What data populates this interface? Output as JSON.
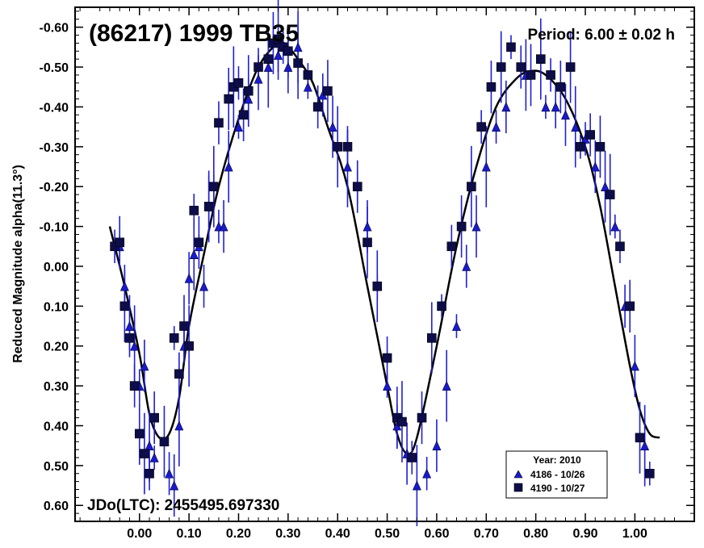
{
  "chart_data": {
    "type": "scatter",
    "title": "(86217) 1999 TB35",
    "period_label": "Period: 6.00 ± 0.02 h",
    "jdo_label": "JDo(LTC): 2455495.697330",
    "ylabel": "Reduced Magnitude alpha(11.3°)",
    "xlabel": "",
    "xlim": [
      -0.13,
      1.12
    ],
    "ylim": [
      0.64,
      -0.65
    ],
    "x_ticks": [
      0.0,
      0.1,
      0.2,
      0.3,
      0.4,
      0.5,
      0.6,
      0.7,
      0.8,
      0.9,
      1.0
    ],
    "x_tick_labels": [
      "0.00",
      "0.10",
      "0.20",
      "0.30",
      "0.40",
      "0.50",
      "0.60",
      "0.70",
      "0.80",
      "0.90",
      "1.00"
    ],
    "y_ticks": [
      -0.6,
      -0.5,
      -0.4,
      -0.3,
      -0.2,
      -0.1,
      0.0,
      0.1,
      0.2,
      0.3,
      0.4,
      0.5,
      0.6
    ],
    "y_tick_labels": [
      "-0.60",
      "-0.50",
      "-0.40",
      "-0.30",
      "-0.20",
      "-0.10",
      "0.00",
      "0.10",
      "0.20",
      "0.30",
      "0.40",
      "0.50",
      "0.60"
    ],
    "legend": {
      "title": "Year: 2010",
      "entries": [
        "4186 - 10/26",
        "4190 - 10/27"
      ],
      "placement": "bottom-right"
    },
    "colors": {
      "series_triangle": "#1a1acc",
      "series_square": "#0d0d4a",
      "errorbar": "#1f1fd6",
      "fit": "#000000"
    },
    "fit_curve": {
      "x": [
        -0.06,
        -0.03,
        0.0,
        0.02,
        0.04,
        0.06,
        0.08,
        0.1,
        0.13,
        0.16,
        0.2,
        0.24,
        0.28,
        0.3,
        0.32,
        0.35,
        0.38,
        0.42,
        0.46,
        0.5,
        0.52,
        0.54,
        0.56,
        0.6,
        0.64,
        0.68,
        0.72,
        0.76,
        0.79,
        0.82,
        0.86,
        0.9,
        0.93,
        0.96,
        0.99,
        1.01,
        1.03,
        1.05
      ],
      "y": [
        -0.1,
        0.05,
        0.22,
        0.37,
        0.43,
        0.42,
        0.33,
        0.15,
        -0.03,
        -0.2,
        -0.37,
        -0.5,
        -0.56,
        -0.55,
        -0.52,
        -0.46,
        -0.35,
        -0.2,
        0.05,
        0.3,
        0.42,
        0.47,
        0.43,
        0.2,
        -0.05,
        -0.25,
        -0.4,
        -0.47,
        -0.49,
        -0.48,
        -0.42,
        -0.3,
        -0.15,
        0.05,
        0.25,
        0.36,
        0.42,
        0.43
      ]
    },
    "series": [
      {
        "name": "4186 - 10/26",
        "marker": "triangle",
        "x": [
          -0.04,
          -0.03,
          -0.02,
          -0.01,
          0.0,
          0.01,
          0.02,
          0.03,
          0.06,
          0.07,
          0.08,
          0.09,
          0.1,
          0.11,
          0.12,
          0.13,
          0.14,
          0.15,
          0.16,
          0.17,
          0.18,
          0.2,
          0.22,
          0.24,
          0.26,
          0.28,
          0.3,
          0.32,
          0.34,
          0.37,
          0.39,
          0.42,
          0.44,
          0.46,
          0.48,
          0.5,
          0.52,
          0.54,
          0.56,
          0.58,
          0.6,
          0.62,
          0.64,
          0.66,
          0.68,
          0.7,
          0.72,
          0.74,
          0.78,
          0.82,
          0.84,
          0.86,
          0.88,
          0.9,
          0.92,
          0.94,
          0.96,
          0.98,
          1.0,
          1.02
        ],
        "y": [
          -0.05,
          0.05,
          0.15,
          0.2,
          0.3,
          0.25,
          0.45,
          0.48,
          0.52,
          0.55,
          0.4,
          0.2,
          0.03,
          -0.03,
          -0.05,
          0.05,
          -0.15,
          -0.2,
          -0.1,
          -0.1,
          -0.25,
          -0.35,
          -0.42,
          -0.47,
          -0.5,
          -0.53,
          -0.5,
          -0.55,
          -0.45,
          -0.43,
          -0.35,
          -0.25,
          -0.2,
          -0.1,
          0.05,
          0.3,
          0.4,
          0.47,
          0.55,
          0.52,
          0.45,
          0.3,
          0.15,
          0.0,
          -0.1,
          -0.25,
          -0.35,
          -0.4,
          -0.48,
          -0.4,
          -0.4,
          -0.38,
          -0.35,
          -0.32,
          -0.25,
          -0.2,
          -0.1,
          0.1,
          0.25,
          0.45
        ]
      },
      {
        "name": "4190 - 10/27",
        "marker": "square",
        "x": [
          -0.05,
          -0.04,
          -0.03,
          -0.02,
          -0.01,
          0.0,
          0.01,
          0.02,
          0.03,
          0.05,
          0.07,
          0.08,
          0.09,
          0.1,
          0.11,
          0.12,
          0.14,
          0.15,
          0.16,
          0.18,
          0.19,
          0.2,
          0.21,
          0.22,
          0.24,
          0.26,
          0.27,
          0.28,
          0.29,
          0.3,
          0.32,
          0.34,
          0.36,
          0.38,
          0.4,
          0.42,
          0.44,
          0.46,
          0.48,
          0.5,
          0.52,
          0.53,
          0.55,
          0.57,
          0.59,
          0.61,
          0.63,
          0.65,
          0.67,
          0.69,
          0.71,
          0.73,
          0.75,
          0.77,
          0.79,
          0.81,
          0.83,
          0.85,
          0.87,
          0.89,
          0.91,
          0.93,
          0.95,
          0.97,
          0.99,
          1.01,
          1.03
        ],
        "y": [
          -0.05,
          -0.06,
          0.1,
          0.18,
          0.3,
          0.42,
          0.47,
          0.52,
          0.38,
          0.44,
          0.18,
          0.27,
          0.15,
          0.2,
          -0.14,
          -0.06,
          -0.15,
          -0.2,
          -0.36,
          -0.42,
          -0.45,
          -0.46,
          -0.38,
          -0.44,
          -0.5,
          -0.52,
          -0.56,
          -0.57,
          -0.55,
          -0.54,
          -0.51,
          -0.48,
          -0.4,
          -0.44,
          -0.3,
          -0.3,
          -0.2,
          -0.06,
          0.05,
          0.23,
          0.38,
          0.39,
          0.48,
          0.38,
          0.18,
          0.1,
          -0.05,
          -0.1,
          -0.2,
          -0.35,
          -0.45,
          -0.5,
          -0.55,
          -0.5,
          -0.48,
          -0.52,
          -0.48,
          -0.45,
          -0.5,
          -0.3,
          -0.33,
          -0.3,
          -0.18,
          -0.05,
          0.1,
          0.43,
          0.52
        ]
      }
    ]
  }
}
